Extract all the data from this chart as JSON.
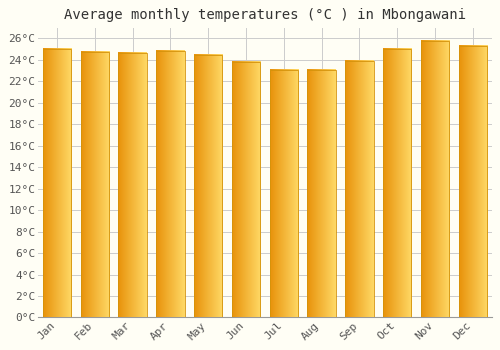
{
  "title": "Average monthly temperatures (°C ) in Mbongawani",
  "months": [
    "Jan",
    "Feb",
    "Mar",
    "Apr",
    "May",
    "Jun",
    "Jul",
    "Aug",
    "Sep",
    "Oct",
    "Nov",
    "Dec"
  ],
  "temperatures": [
    25.0,
    24.7,
    24.6,
    24.8,
    24.5,
    23.8,
    23.1,
    23.1,
    23.9,
    25.0,
    25.8,
    25.3
  ],
  "bar_color": "#FDB813",
  "bar_edge_color": "#D4920A",
  "background_color": "#FFFEF5",
  "grid_color": "#CCCCCC",
  "ylim": [
    0,
    27
  ],
  "ytick_interval": 2,
  "title_fontsize": 10,
  "tick_fontsize": 8,
  "title_font": "monospace",
  "tick_font": "monospace"
}
